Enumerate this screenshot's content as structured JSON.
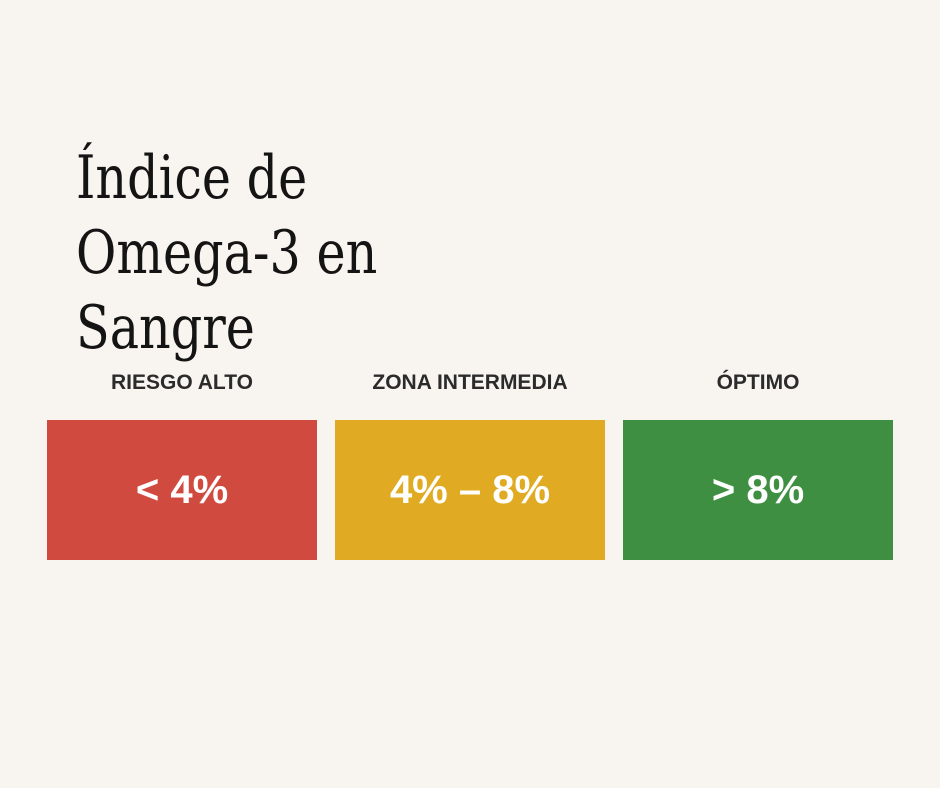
{
  "title": {
    "line1": "Índice de",
    "line2": "Omega-3 en",
    "line3": "Sangre"
  },
  "ranges": [
    {
      "label": "RIESGO ALTO",
      "value": "< 4%",
      "color": "#d14a3f"
    },
    {
      "label": "ZONA INTERMEDIA",
      "value": "4% – 8%",
      "color": "#e0ab22"
    },
    {
      "label": "ÓPTIMO",
      "value": "> 8%",
      "color": "#3e8f42"
    }
  ]
}
